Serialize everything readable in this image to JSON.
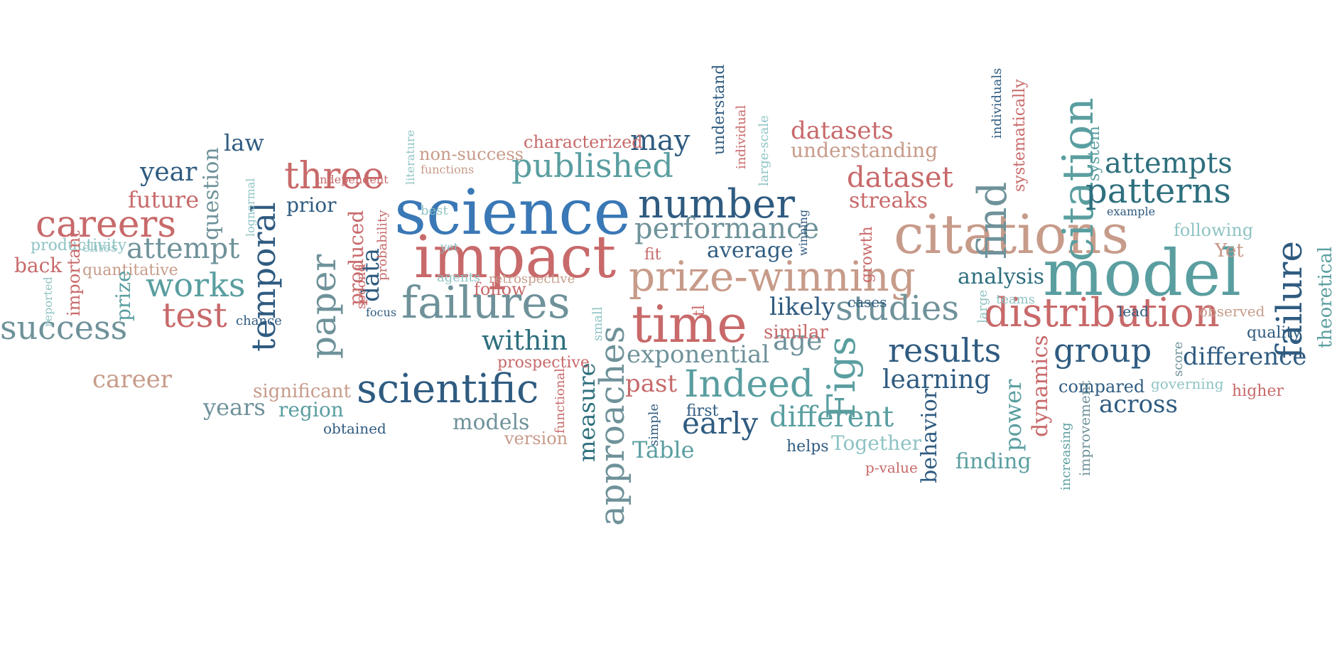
{
  "palette": {
    "rose": "#c8696a",
    "blue": "#3a78b6",
    "teal": "#5a9ea0",
    "navy": "#2f5b80",
    "slate": "#6f929a",
    "tan": "#c79b8a",
    "mint": "#8fc3c4",
    "darkteal": "#2e6f7e"
  },
  "words": [
    {
      "text": "science",
      "color": "blue"
    },
    {
      "text": "impact",
      "color": "rose"
    },
    {
      "text": "model",
      "color": "teal"
    },
    {
      "text": "citations",
      "color": "tan"
    },
    {
      "text": "time",
      "color": "rose"
    },
    {
      "text": "prize-winning",
      "color": "tan"
    },
    {
      "text": "failures",
      "color": "slate"
    },
    {
      "text": "distribution",
      "color": "rose"
    },
    {
      "text": "number",
      "color": "navy"
    },
    {
      "text": "three",
      "color": "rose"
    },
    {
      "text": "scientific",
      "color": "navy"
    },
    {
      "text": "citation",
      "color": "teal"
    },
    {
      "text": "find",
      "color": "slate"
    },
    {
      "text": "failure",
      "color": "navy"
    },
    {
      "text": "patterns",
      "color": "darkteal"
    },
    {
      "text": "results",
      "color": "navy"
    },
    {
      "text": "group",
      "color": "navy"
    },
    {
      "text": "careers",
      "color": "rose"
    },
    {
      "text": "success",
      "color": "slate"
    },
    {
      "text": "published",
      "color": "teal"
    },
    {
      "text": "paper",
      "color": "slate"
    },
    {
      "text": "temporal",
      "color": "navy"
    },
    {
      "text": "works",
      "color": "teal"
    },
    {
      "text": "test",
      "color": "rose"
    },
    {
      "text": "studies",
      "color": "slate"
    },
    {
      "text": "Indeed",
      "color": "teal"
    },
    {
      "text": "Figs",
      "color": "teal"
    },
    {
      "text": "approaches",
      "color": "slate"
    },
    {
      "text": "performance",
      "color": "slate"
    },
    {
      "text": "attempts",
      "color": "darkteal"
    },
    {
      "text": "dataset",
      "color": "rose"
    },
    {
      "text": "may",
      "color": "navy"
    },
    {
      "text": "within",
      "color": "darkteal"
    },
    {
      "text": "exponential",
      "color": "slate"
    },
    {
      "text": "different",
      "color": "teal"
    },
    {
      "text": "early",
      "color": "navy"
    },
    {
      "text": "age",
      "color": "slate"
    },
    {
      "text": "learning",
      "color": "navy"
    },
    {
      "text": "difference",
      "color": "navy"
    },
    {
      "text": "datasets",
      "color": "rose"
    },
    {
      "text": "attempt",
      "color": "slate"
    },
    {
      "text": "across",
      "color": "navy"
    },
    {
      "text": "career",
      "color": "tan"
    },
    {
      "text": "year",
      "color": "navy"
    },
    {
      "text": "future",
      "color": "rose"
    },
    {
      "text": "law",
      "color": "navy"
    },
    {
      "text": "understanding",
      "color": "tan"
    },
    {
      "text": "streaks",
      "color": "rose"
    },
    {
      "text": "analysis",
      "color": "darkteal"
    },
    {
      "text": "likely",
      "color": "navy"
    },
    {
      "text": "average",
      "color": "navy"
    },
    {
      "text": "data",
      "color": "navy"
    },
    {
      "text": "past",
      "color": "rose"
    },
    {
      "text": "Table",
      "color": "teal"
    },
    {
      "text": "measure",
      "color": "darkteal"
    },
    {
      "text": "power",
      "color": "teal"
    },
    {
      "text": "behavior",
      "color": "navy"
    },
    {
      "text": "dynamics",
      "color": "rose"
    },
    {
      "text": "years",
      "color": "slate"
    },
    {
      "text": "region",
      "color": "teal"
    },
    {
      "text": "models",
      "color": "slate"
    },
    {
      "text": "Together",
      "color": "mint"
    },
    {
      "text": "finding",
      "color": "teal"
    },
    {
      "text": "question",
      "color": "slate"
    },
    {
      "text": "produced",
      "color": "rose"
    },
    {
      "text": "prior",
      "color": "navy"
    },
    {
      "text": "similar",
      "color": "rose"
    },
    {
      "text": "characterized",
      "color": "rose"
    },
    {
      "text": "non-success",
      "color": "tan"
    },
    {
      "text": "productivity",
      "color": "mint"
    },
    {
      "text": "back",
      "color": "rose"
    },
    {
      "text": "quantitative",
      "color": "tan"
    },
    {
      "text": "important",
      "color": "rose"
    },
    {
      "text": "prize",
      "color": "teal"
    },
    {
      "text": "follow",
      "color": "rose"
    },
    {
      "text": "compared",
      "color": "navy"
    },
    {
      "text": "quality",
      "color": "navy"
    },
    {
      "text": "higher",
      "color": "rose"
    },
    {
      "text": "prospective",
      "color": "rose"
    },
    {
      "text": "significant",
      "color": "tan"
    },
    {
      "text": "version",
      "color": "tan"
    },
    {
      "text": "Yet",
      "color": "tan"
    },
    {
      "text": "following",
      "color": "mint"
    },
    {
      "text": "theoretical",
      "color": "teal"
    },
    {
      "text": "system",
      "color": "teal"
    },
    {
      "text": "example",
      "color": "navy"
    },
    {
      "text": "systematically",
      "color": "rose"
    },
    {
      "text": "individuals",
      "color": "navy"
    },
    {
      "text": "growth",
      "color": "rose"
    },
    {
      "text": "winning",
      "color": "navy"
    },
    {
      "text": "cases",
      "color": "navy"
    },
    {
      "text": "large",
      "color": "mint"
    },
    {
      "text": "teams",
      "color": "mint"
    },
    {
      "text": "observed",
      "color": "tan"
    },
    {
      "text": "lead",
      "color": "navy"
    },
    {
      "text": "governing",
      "color": "mint"
    },
    {
      "text": "score",
      "color": "slate"
    },
    {
      "text": "increasing",
      "color": "teal"
    },
    {
      "text": "improvement",
      "color": "slate"
    },
    {
      "text": "obtained",
      "color": "navy"
    },
    {
      "text": "functional",
      "color": "rose"
    },
    {
      "text": "simple",
      "color": "navy"
    },
    {
      "text": "first",
      "color": "navy"
    },
    {
      "text": "helps",
      "color": "navy"
    },
    {
      "text": "p-value",
      "color": "rose"
    },
    {
      "text": "fit",
      "color": "rose"
    },
    {
      "text": "tl",
      "color": "rose"
    },
    {
      "text": "small",
      "color": "mint"
    },
    {
      "text": "chance",
      "color": "navy"
    },
    {
      "text": "focus",
      "color": "navy"
    },
    {
      "text": "second",
      "color": "rose"
    },
    {
      "text": "probability",
      "color": "rose"
    },
    {
      "text": "elites",
      "color": "mint"
    },
    {
      "text": "reported",
      "color": "mint"
    },
    {
      "text": "lognormal",
      "color": "mint"
    },
    {
      "text": "independent",
      "color": "rose"
    },
    {
      "text": "functions",
      "color": "tan"
    },
    {
      "text": "literature",
      "color": "mint"
    },
    {
      "text": "best",
      "color": "mint"
    },
    {
      "text": "yet",
      "color": "mint"
    },
    {
      "text": "agents",
      "color": "mint"
    },
    {
      "text": "retrospective",
      "color": "tan"
    },
    {
      "text": "understand",
      "color": "navy"
    },
    {
      "text": "individual",
      "color": "rose"
    },
    {
      "text": "large-scale",
      "color": "mint"
    }
  ]
}
